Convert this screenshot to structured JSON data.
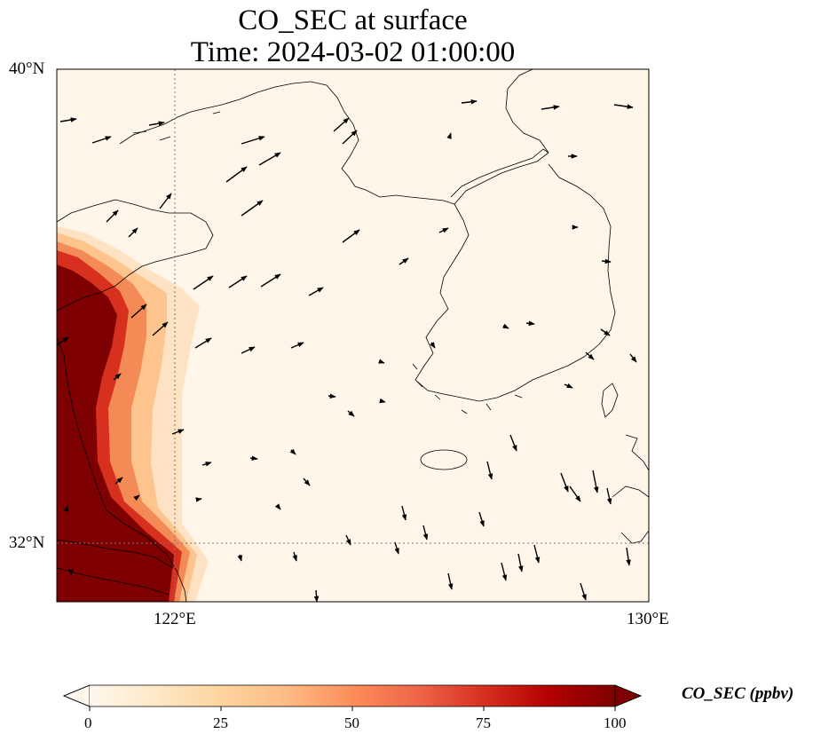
{
  "title": {
    "line1": "CO_SEC at surface",
    "line2": "Time: 2024-03-02 01:00:00"
  },
  "map": {
    "lon_range": [
      118.0,
      130.0
    ],
    "lat_range": [
      30.8,
      40.0
    ],
    "lat_labels": [
      "40°N",
      "32°N"
    ],
    "lon_labels": [
      "122°E",
      "130°E"
    ],
    "gridline_style": "dotted grey",
    "field_colormap": "OrRd",
    "vector_color": "#000000"
  },
  "colorbar": {
    "label": "CO_SEC (ppbv)",
    "ticks": [
      "0",
      "25",
      "50",
      "75",
      "100"
    ],
    "range": [
      0,
      100
    ],
    "extend": "both",
    "colors": [
      "#fff7ec",
      "#fee8c8",
      "#fdd49e",
      "#fdbb84",
      "#fc8d59",
      "#ef6548",
      "#d7301f",
      "#b30000",
      "#7f0000"
    ]
  }
}
